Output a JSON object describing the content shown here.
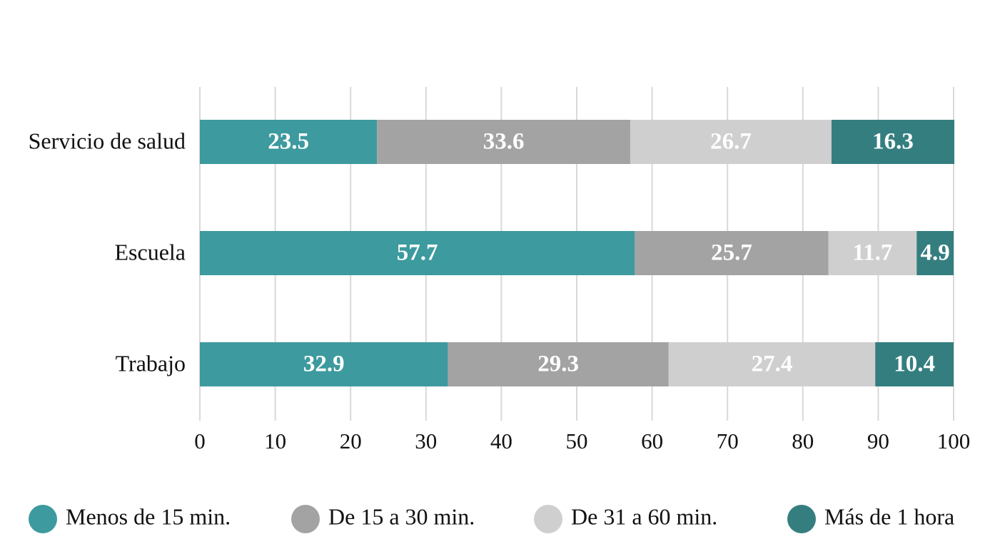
{
  "chart_data": {
    "type": "bar",
    "orientation": "horizontal",
    "stacked": true,
    "categories": [
      "Servicio de salud",
      "Escuela",
      "Trabajo"
    ],
    "series": [
      {
        "name": "Menos de 15 min.",
        "color": "#3d9a9e",
        "values": [
          23.5,
          57.7,
          32.9
        ]
      },
      {
        "name": "De 15 a 30 min.",
        "color": "#a3a3a3",
        "values": [
          33.6,
          25.7,
          29.3
        ]
      },
      {
        "name": "De 31 a 60 min.",
        "color": "#d0cfd0",
        "values": [
          26.7,
          11.7,
          27.4
        ]
      },
      {
        "name": "Más de 1 hora",
        "color": "#357e80",
        "values": [
          16.3,
          4.9,
          10.4
        ]
      }
    ],
    "xlim": [
      0,
      100
    ],
    "xticks": [
      0,
      10,
      20,
      30,
      40,
      50,
      60,
      70,
      80,
      90,
      100
    ],
    "grid": true
  }
}
